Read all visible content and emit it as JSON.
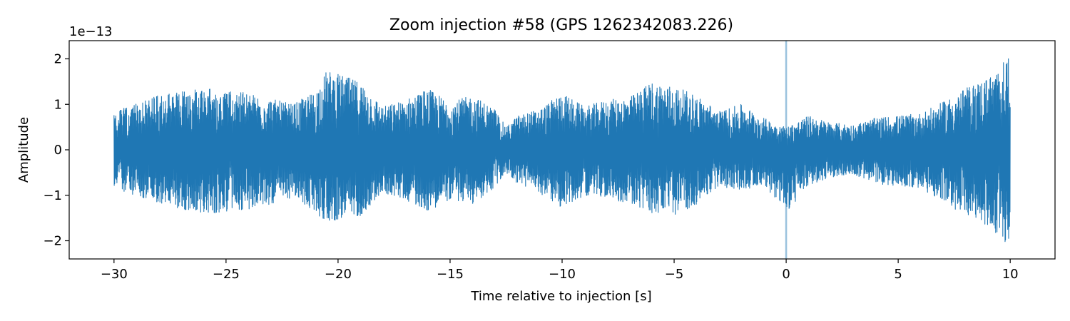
{
  "chart_data": {
    "type": "line",
    "title": "Zoom injection #58 (GPS 1262342083.226)",
    "xlabel": "Time relative to injection [s]",
    "ylabel": "Amplitude",
    "y_offset_text": "1e−13",
    "xlim": [
      -32,
      12
    ],
    "ylim": [
      -2.4,
      2.4
    ],
    "x_ticks": [
      -30,
      -25,
      -20,
      -15,
      -10,
      -5,
      0,
      5,
      10
    ],
    "x_tick_labels": [
      "−30",
      "−25",
      "−20",
      "−15",
      "−10",
      "−5",
      "0",
      "5",
      "10"
    ],
    "y_ticks": [
      -2,
      -1,
      0,
      1,
      2
    ],
    "y_tick_labels": [
      "−2",
      "−1",
      "0",
      "1",
      "2"
    ],
    "grid": false,
    "series": [
      {
        "color": "#1f77b4",
        "x_range": [
          -30,
          10
        ],
        "envelope": {
          "x": [
            -30,
            -28,
            -26,
            -24,
            -22,
            -21,
            -20.5,
            -19,
            -18,
            -17,
            -16,
            -15,
            -14,
            -13,
            -12.5,
            -12,
            -11,
            -10,
            -9,
            -8,
            -7,
            -6,
            -5,
            -4,
            -3,
            -2,
            -1,
            0,
            1,
            2,
            3,
            4,
            5,
            6,
            7,
            8,
            9,
            9.5,
            10
          ],
          "upper": [
            0.85,
            1.2,
            1.35,
            1.25,
            1.0,
            1.3,
            1.75,
            1.5,
            0.95,
            1.1,
            1.35,
            1.05,
            1.2,
            0.9,
            0.5,
            0.75,
            0.9,
            1.25,
            0.95,
            1.1,
            1.15,
            1.5,
            1.4,
            1.2,
            0.85,
            1.0,
            0.7,
            0.5,
            0.75,
            0.6,
            0.55,
            0.7,
            0.75,
            0.8,
            1.05,
            1.35,
            1.6,
            1.75,
            2.2
          ],
          "lower": [
            -0.85,
            -1.2,
            -1.4,
            -1.35,
            -1.05,
            -1.4,
            -1.6,
            -1.45,
            -0.95,
            -1.1,
            -1.35,
            -1.1,
            -1.2,
            -0.85,
            -0.5,
            -0.75,
            -0.95,
            -1.3,
            -1.0,
            -1.05,
            -1.2,
            -1.4,
            -1.45,
            -1.2,
            -0.8,
            -0.9,
            -0.75,
            -1.4,
            -0.8,
            -0.6,
            -0.55,
            -0.75,
            -0.8,
            -0.85,
            -1.15,
            -1.45,
            -1.7,
            -1.9,
            -2.15
          ]
        }
      }
    ],
    "annotations": [
      {
        "type": "vertical_line",
        "x": 0,
        "color": "#1f77b4",
        "opacity": 0.45
      }
    ]
  }
}
